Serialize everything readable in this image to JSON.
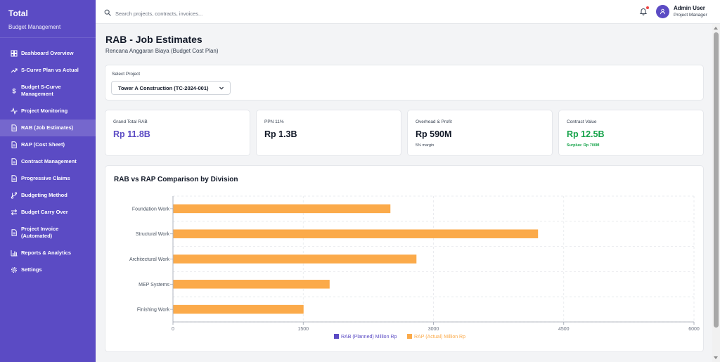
{
  "app": {
    "title": "Total",
    "subtitle": "Budget Management"
  },
  "sidebar": {
    "items": [
      {
        "label": "Dashboard Overview",
        "icon": "dashboard-grid-icon"
      },
      {
        "label": "S-Curve Plan vs Actual",
        "icon": "trending-up-icon"
      },
      {
        "label": "Budget S-Curve Management",
        "icon": "dollar-icon"
      },
      {
        "label": "Project Monitoring",
        "icon": "activity-icon"
      },
      {
        "label": "RAB (Job Estimates)",
        "icon": "document-icon",
        "active": true
      },
      {
        "label": "RAP (Cost Sheet)",
        "icon": "document-icon"
      },
      {
        "label": "Contract Management",
        "icon": "document-icon"
      },
      {
        "label": "Progressive Claims",
        "icon": "document-icon"
      },
      {
        "label": "Budgeting Method",
        "icon": "branch-icon"
      },
      {
        "label": "Budget Carry Over",
        "icon": "swap-icon"
      },
      {
        "label": "Project Invoice (Automated)",
        "icon": "document-icon"
      },
      {
        "label": "Reports & Analytics",
        "icon": "bar-chart-icon"
      },
      {
        "label": "Settings",
        "icon": "gear-icon"
      }
    ]
  },
  "header": {
    "search_placeholder": "Search projects, contracts, invoices...",
    "user_name": "Admin User",
    "user_role": "Project Manager"
  },
  "page": {
    "title": "RAB - Job Estimates",
    "subtitle": "Rencana Anggaran Biaya (Budget Cost Plan)"
  },
  "project_select": {
    "label": "Select Project",
    "value": "Tower A Construction (TC-2024-001)"
  },
  "stats": [
    {
      "label": "Grand Total RAB",
      "value": "Rp 11.8B",
      "color": "#5b4bc4"
    },
    {
      "label": "PPN 11%",
      "value": "Rp 1.3B",
      "color": "#111827"
    },
    {
      "label": "Overhead & Profit",
      "value": "Rp 590M",
      "note": "5% margin",
      "color": "#111827"
    },
    {
      "label": "Contract Value",
      "value": "Rp 12.5B",
      "note": "Surplus: Rp 700M",
      "color": "#16a34a"
    }
  ],
  "colors": {
    "accent": "#5b4bc4",
    "rab": "#5b4bc4",
    "rap": "#fbaa4a",
    "success": "#16a34a"
  },
  "chart_data": {
    "type": "bar",
    "orientation": "horizontal",
    "title": "RAB vs RAP Comparison by Division",
    "categories": [
      "Foundation Work",
      "Structural Work",
      "Architectural Work",
      "MEP Systems",
      "Finishing Work"
    ],
    "series": [
      {
        "name": "RAB (Planned) Million Rp",
        "values": [
          0,
          0,
          0,
          0,
          0
        ]
      },
      {
        "name": "RAP (Actual) Million Rp",
        "values": [
          2500,
          4200,
          2800,
          1800,
          1500
        ]
      }
    ],
    "xlim": [
      0,
      6000
    ],
    "xticks": [
      "0",
      "1500",
      "3000",
      "4500",
      "6000"
    ],
    "grid": true,
    "legend": "bottom"
  }
}
